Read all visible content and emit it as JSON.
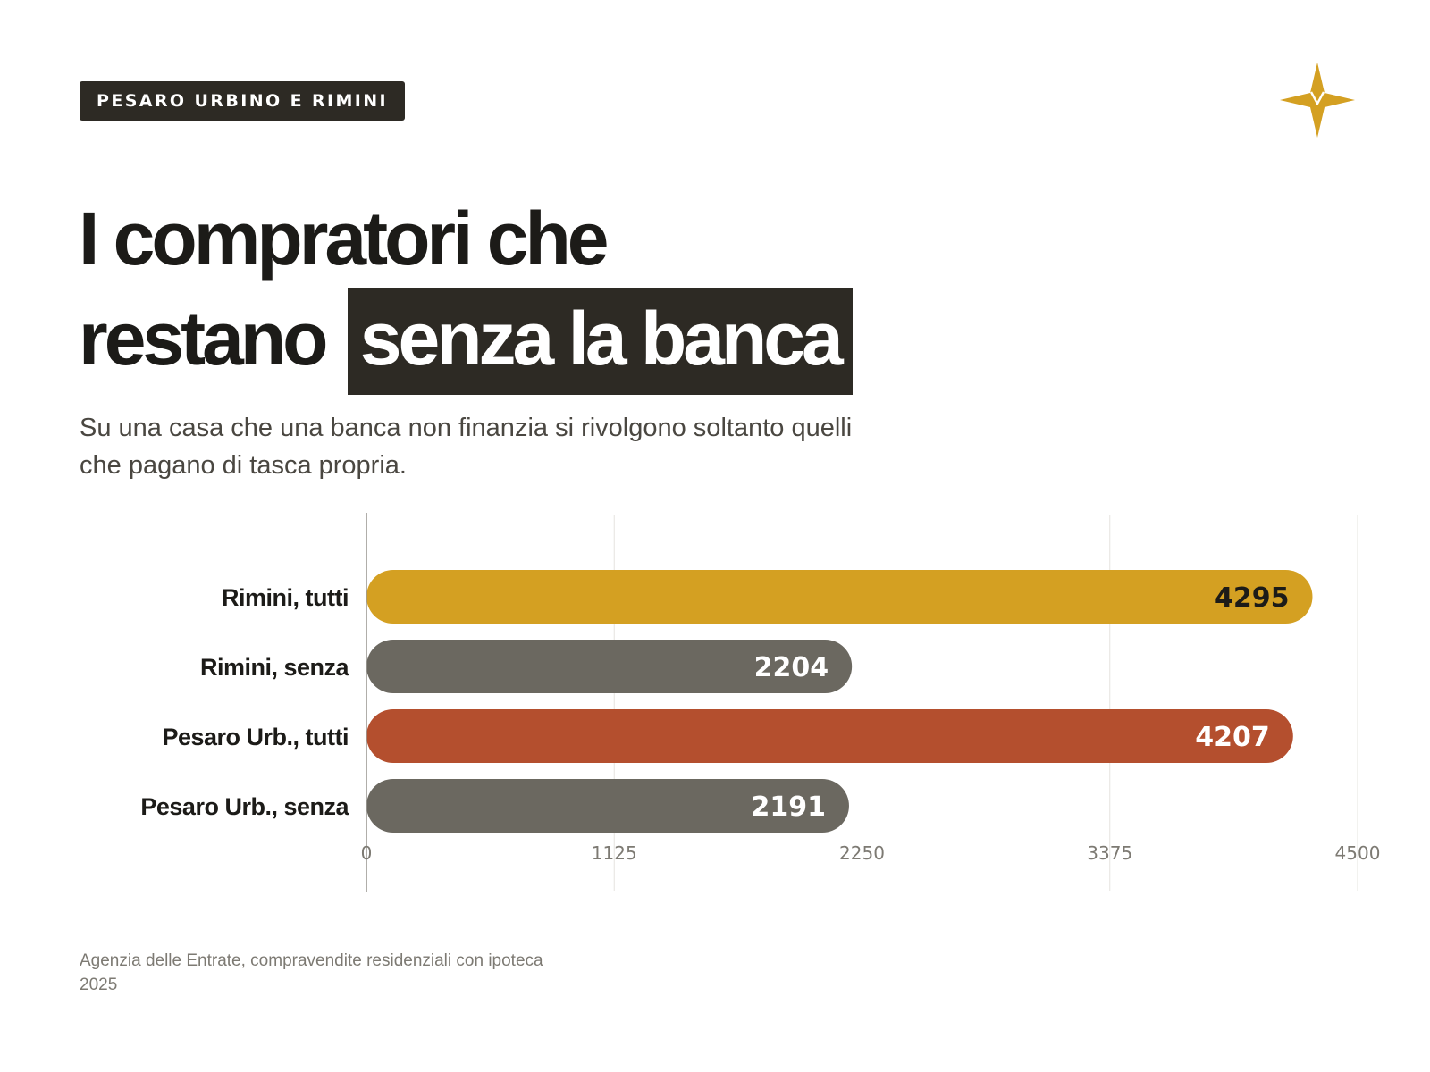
{
  "tag": {
    "label": "PESARO URBINO E RIMINI"
  },
  "logo": {
    "icon": "compass-star-icon",
    "color": "#d4a022"
  },
  "title": {
    "line1": "I compratori che",
    "line2_plain": "restano",
    "line2_highlight": "senza la banca"
  },
  "subtitle": "Su una casa che una banca non finanzia si rivolgono soltanto quelli che pagano di tasca propria.",
  "source": {
    "line1": "Agenzia delle Entrate, compravendite residenziali con ipoteca",
    "line2": "2025"
  },
  "chart_data": {
    "type": "bar",
    "orientation": "horizontal",
    "categories": [
      "Rimini, tutti",
      "Rimini, senza",
      "Pesaro Urb., tutti",
      "Pesaro Urb., senza"
    ],
    "values": [
      4295,
      2204,
      4207,
      2191
    ],
    "colors": [
      "#d4a022",
      "#6b6860",
      "#b44f2e",
      "#6b6860"
    ],
    "value_label_colors": [
      "#1c1b18",
      "#ffffff",
      "#ffffff",
      "#ffffff"
    ],
    "xlim": [
      0,
      4500
    ],
    "xticks": [
      0,
      1125,
      2250,
      3375,
      4500
    ],
    "grid": true,
    "legend": "none"
  }
}
